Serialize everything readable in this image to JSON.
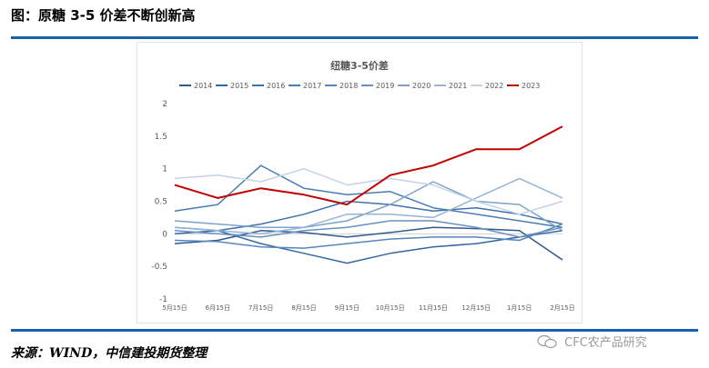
{
  "header": {
    "title": "图：原糖 3-5 价差不断创新高"
  },
  "footer": {
    "source": "来源：WIND，中信建投期货整理",
    "watermark": "CFC农产品研究"
  },
  "chart_data": {
    "type": "line",
    "title": "纽糖3-5价差",
    "xlabel": "",
    "ylabel": "",
    "ylim": [
      -1,
      2
    ],
    "yticks": [
      2,
      1.5,
      1,
      0.5,
      0,
      -0.5,
      -1
    ],
    "xticks": [
      "5月15日",
      "6月15日",
      "7月15日",
      "8月15日",
      "9月15日",
      "10月15日",
      "11月15日",
      "12月15日",
      "1月15日",
      "2月15日"
    ],
    "x": [
      0,
      1,
      2,
      3,
      4,
      5,
      6,
      7,
      8,
      9
    ],
    "grid": "zero-line only",
    "legend": "top",
    "series": [
      {
        "name": "2014",
        "color": "#2e5a8f",
        "values": [
          -0.15,
          -0.1,
          0.05,
          0.02,
          -0.05,
          0.02,
          0.1,
          0.08,
          0.05,
          -0.4
        ]
      },
      {
        "name": "2015",
        "color": "#35689f",
        "values": [
          0.0,
          0.05,
          -0.15,
          -0.3,
          -0.45,
          -0.3,
          -0.2,
          -0.15,
          -0.05,
          0.05
        ]
      },
      {
        "name": "2016",
        "color": "#3f73ab",
        "values": [
          0.1,
          0.05,
          0.15,
          0.3,
          0.5,
          0.45,
          0.35,
          0.4,
          0.3,
          0.15
        ]
      },
      {
        "name": "2017",
        "color": "#4a7db5",
        "values": [
          0.35,
          0.45,
          1.05,
          0.7,
          0.6,
          0.65,
          0.4,
          0.3,
          0.2,
          0.1
        ]
      },
      {
        "name": "2018",
        "color": "#5686bd",
        "values": [
          -0.1,
          -0.12,
          -0.2,
          -0.22,
          -0.15,
          -0.08,
          -0.05,
          -0.05,
          -0.1,
          0.15
        ]
      },
      {
        "name": "2019",
        "color": "#6891c2",
        "values": [
          0.05,
          0.0,
          -0.05,
          0.05,
          0.1,
          0.2,
          0.2,
          0.1,
          -0.05,
          0.1
        ]
      },
      {
        "name": "2020",
        "color": "#7ea1cb",
        "values": [
          0.2,
          0.15,
          0.1,
          0.1,
          0.2,
          0.45,
          0.8,
          0.5,
          0.45,
          0.05
        ]
      },
      {
        "name": "2021",
        "color": "#97b3d5",
        "values": [
          0.1,
          0.05,
          0.0,
          0.1,
          0.3,
          0.3,
          0.25,
          0.55,
          0.85,
          0.55
        ]
      },
      {
        "name": "2022",
        "color": "#c3d3e7",
        "values": [
          0.85,
          0.9,
          0.8,
          1.0,
          0.75,
          0.85,
          0.75,
          0.5,
          0.3,
          0.5
        ]
      },
      {
        "name": "2023",
        "color": "#c00000",
        "values": [
          0.75,
          0.55,
          0.7,
          0.6,
          0.45,
          0.9,
          1.05,
          1.3,
          1.3,
          1.65
        ]
      }
    ]
  }
}
